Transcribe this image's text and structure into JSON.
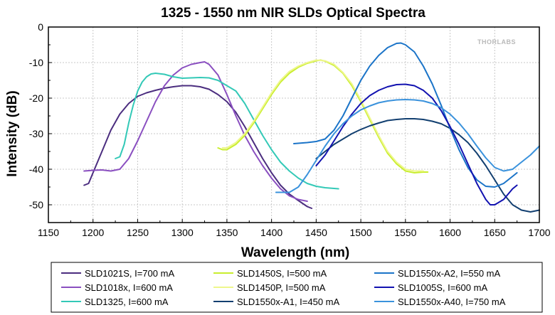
{
  "chart_data": {
    "type": "line",
    "title": "1325 - 1550 nm NIR SLDs Optical Spectra",
    "xlabel": "Wavelength (nm)",
    "ylabel": "Intensity (dB)",
    "xlim": [
      1150,
      1700
    ],
    "ylim": [
      -55,
      0
    ],
    "xticks": [
      1150,
      1200,
      1250,
      1300,
      1350,
      1400,
      1450,
      1500,
      1550,
      1600,
      1650,
      1700
    ],
    "yticks": [
      0,
      -10,
      -20,
      -30,
      -40,
      -50
    ],
    "grid": true,
    "legend_position": "bottom",
    "watermark": "THORLABS",
    "series": [
      {
        "name": "SLD1021S, I=700 mA",
        "color": "#4b2d7f",
        "points": [
          [
            1190,
            -44.5
          ],
          [
            1195,
            -44
          ],
          [
            1200,
            -41
          ],
          [
            1210,
            -35
          ],
          [
            1220,
            -29
          ],
          [
            1230,
            -24.5
          ],
          [
            1240,
            -21.5
          ],
          [
            1250,
            -19.5
          ],
          [
            1260,
            -18.5
          ],
          [
            1270,
            -17.8
          ],
          [
            1280,
            -17.2
          ],
          [
            1290,
            -16.8
          ],
          [
            1300,
            -16.5
          ],
          [
            1310,
            -16.5
          ],
          [
            1320,
            -16.8
          ],
          [
            1330,
            -17.5
          ],
          [
            1340,
            -19
          ],
          [
            1350,
            -21
          ],
          [
            1360,
            -24
          ],
          [
            1370,
            -28
          ],
          [
            1380,
            -32.5
          ],
          [
            1390,
            -37
          ],
          [
            1400,
            -41
          ],
          [
            1410,
            -44.5
          ],
          [
            1420,
            -47
          ],
          [
            1430,
            -48.8
          ],
          [
            1440,
            -50.5
          ],
          [
            1445,
            -51
          ]
        ]
      },
      {
        "name": "SLD1018x, I=600 mA",
        "color": "#8a4fc0",
        "points": [
          [
            1190,
            -40.5
          ],
          [
            1200,
            -40.3
          ],
          [
            1210,
            -40.2
          ],
          [
            1220,
            -40.5
          ],
          [
            1230,
            -40
          ],
          [
            1240,
            -37
          ],
          [
            1250,
            -32
          ],
          [
            1260,
            -26.5
          ],
          [
            1270,
            -21
          ],
          [
            1280,
            -16.5
          ],
          [
            1290,
            -13.5
          ],
          [
            1300,
            -11.5
          ],
          [
            1310,
            -10.5
          ],
          [
            1320,
            -10
          ],
          [
            1325,
            -9.8
          ],
          [
            1330,
            -10.5
          ],
          [
            1340,
            -13.5
          ],
          [
            1350,
            -19
          ],
          [
            1360,
            -25
          ],
          [
            1370,
            -30.5
          ],
          [
            1380,
            -35
          ],
          [
            1390,
            -39
          ],
          [
            1400,
            -42.5
          ],
          [
            1410,
            -45.5
          ],
          [
            1420,
            -47.5
          ],
          [
            1430,
            -48.5
          ],
          [
            1440,
            -49
          ]
        ]
      },
      {
        "name": "SLD1325, I=600 mA",
        "color": "#33c9b7",
        "points": [
          [
            1225,
            -37
          ],
          [
            1230,
            -36.5
          ],
          [
            1235,
            -33
          ],
          [
            1240,
            -27
          ],
          [
            1245,
            -22
          ],
          [
            1250,
            -18
          ],
          [
            1255,
            -15.5
          ],
          [
            1260,
            -14
          ],
          [
            1265,
            -13.2
          ],
          [
            1270,
            -13
          ],
          [
            1280,
            -13.3
          ],
          [
            1290,
            -14
          ],
          [
            1300,
            -14.4
          ],
          [
            1310,
            -14.3
          ],
          [
            1320,
            -14.2
          ],
          [
            1330,
            -14.3
          ],
          [
            1340,
            -15
          ],
          [
            1350,
            -16.5
          ],
          [
            1360,
            -18
          ],
          [
            1370,
            -21.5
          ],
          [
            1380,
            -26
          ],
          [
            1390,
            -30.5
          ],
          [
            1400,
            -34.5
          ],
          [
            1410,
            -38
          ],
          [
            1420,
            -40.5
          ],
          [
            1430,
            -42.5
          ],
          [
            1440,
            -44
          ],
          [
            1450,
            -44.8
          ],
          [
            1460,
            -45.2
          ],
          [
            1470,
            -45.4
          ],
          [
            1475,
            -45.5
          ]
        ]
      },
      {
        "name": "SLD1450S, I=500 mA",
        "color": "#c9ee2e",
        "points": [
          [
            1340,
            -34
          ],
          [
            1345,
            -34.5
          ],
          [
            1350,
            -34.5
          ],
          [
            1360,
            -33
          ],
          [
            1370,
            -30.5
          ],
          [
            1380,
            -27
          ],
          [
            1390,
            -23
          ],
          [
            1400,
            -19
          ],
          [
            1410,
            -15.5
          ],
          [
            1420,
            -13
          ],
          [
            1430,
            -11.3
          ],
          [
            1440,
            -10.2
          ],
          [
            1450,
            -9.5
          ],
          [
            1455,
            -9.3
          ],
          [
            1460,
            -9.6
          ],
          [
            1470,
            -10.8
          ],
          [
            1480,
            -13
          ],
          [
            1490,
            -16.5
          ],
          [
            1500,
            -21
          ],
          [
            1510,
            -26
          ],
          [
            1520,
            -31
          ],
          [
            1530,
            -35.5
          ],
          [
            1540,
            -38.5
          ],
          [
            1550,
            -40.5
          ],
          [
            1560,
            -41
          ],
          [
            1570,
            -40.8
          ],
          [
            1575,
            -40.8
          ]
        ]
      },
      {
        "name": "SLD1450P, I=500 mA",
        "color": "#eef78c",
        "points": [
          [
            1345,
            -34
          ],
          [
            1350,
            -34
          ],
          [
            1360,
            -32.5
          ],
          [
            1370,
            -30
          ],
          [
            1380,
            -26.5
          ],
          [
            1390,
            -22.5
          ],
          [
            1400,
            -18.5
          ],
          [
            1410,
            -15
          ],
          [
            1420,
            -12.5
          ],
          [
            1430,
            -11
          ],
          [
            1440,
            -10
          ],
          [
            1450,
            -9.3
          ],
          [
            1460,
            -9.5
          ],
          [
            1470,
            -10.5
          ],
          [
            1480,
            -12.8
          ],
          [
            1490,
            -16
          ],
          [
            1500,
            -20.5
          ],
          [
            1510,
            -25.5
          ],
          [
            1520,
            -30.5
          ],
          [
            1530,
            -35
          ],
          [
            1540,
            -38
          ],
          [
            1550,
            -40
          ],
          [
            1560,
            -40.5
          ],
          [
            1570,
            -40.5
          ]
        ]
      },
      {
        "name": "SLD1550x-A1, I=450 mA",
        "color": "#123f70",
        "points": [
          [
            1450,
            -37
          ],
          [
            1460,
            -35
          ],
          [
            1470,
            -33
          ],
          [
            1480,
            -31.5
          ],
          [
            1490,
            -30
          ],
          [
            1500,
            -28.8
          ],
          [
            1510,
            -27.8
          ],
          [
            1520,
            -27
          ],
          [
            1530,
            -26.3
          ],
          [
            1540,
            -26
          ],
          [
            1550,
            -25.8
          ],
          [
            1560,
            -25.8
          ],
          [
            1570,
            -26
          ],
          [
            1580,
            -26.5
          ],
          [
            1590,
            -27.2
          ],
          [
            1600,
            -28.5
          ],
          [
            1610,
            -30.3
          ],
          [
            1620,
            -32.5
          ],
          [
            1630,
            -35.5
          ],
          [
            1640,
            -39
          ],
          [
            1650,
            -43
          ],
          [
            1660,
            -47
          ],
          [
            1670,
            -50
          ],
          [
            1680,
            -51.5
          ],
          [
            1690,
            -52
          ],
          [
            1700,
            -51.5
          ]
        ]
      },
      {
        "name": "SLD1550x-A2, I=550 mA",
        "color": "#1b74c8",
        "points": [
          [
            1425,
            -32.8
          ],
          [
            1440,
            -32.5
          ],
          [
            1450,
            -32.2
          ],
          [
            1460,
            -31.5
          ],
          [
            1470,
            -29
          ],
          [
            1480,
            -25
          ],
          [
            1490,
            -20
          ],
          [
            1500,
            -15
          ],
          [
            1510,
            -11
          ],
          [
            1520,
            -8
          ],
          [
            1530,
            -5.8
          ],
          [
            1540,
            -4.6
          ],
          [
            1545,
            -4.5
          ],
          [
            1550,
            -5
          ],
          [
            1560,
            -7
          ],
          [
            1570,
            -11
          ],
          [
            1580,
            -16
          ],
          [
            1590,
            -22
          ],
          [
            1600,
            -28.5
          ],
          [
            1610,
            -34.5
          ],
          [
            1620,
            -39.5
          ],
          [
            1630,
            -43
          ],
          [
            1640,
            -44.8
          ],
          [
            1650,
            -45
          ],
          [
            1660,
            -44
          ],
          [
            1670,
            -42
          ],
          [
            1675,
            -41
          ]
        ]
      },
      {
        "name": "SLD1005S, I=600 mA",
        "color": "#1212b0",
        "points": [
          [
            1450,
            -39
          ],
          [
            1460,
            -36
          ],
          [
            1470,
            -32
          ],
          [
            1480,
            -28
          ],
          [
            1490,
            -24.5
          ],
          [
            1500,
            -21.5
          ],
          [
            1510,
            -19.3
          ],
          [
            1520,
            -17.8
          ],
          [
            1530,
            -16.8
          ],
          [
            1540,
            -16.2
          ],
          [
            1550,
            -16.1
          ],
          [
            1560,
            -16.5
          ],
          [
            1570,
            -17.8
          ],
          [
            1580,
            -20
          ],
          [
            1590,
            -23.5
          ],
          [
            1600,
            -28
          ],
          [
            1610,
            -33
          ],
          [
            1620,
            -38.5
          ],
          [
            1630,
            -44
          ],
          [
            1640,
            -48.5
          ],
          [
            1645,
            -50
          ],
          [
            1650,
            -50
          ],
          [
            1660,
            -48.5
          ],
          [
            1670,
            -45.5
          ],
          [
            1675,
            -44.5
          ]
        ]
      },
      {
        "name": "SLD1550x-A40, I=750 mA",
        "color": "#3a92dc",
        "points": [
          [
            1405,
            -46.5
          ],
          [
            1420,
            -46.5
          ],
          [
            1430,
            -45
          ],
          [
            1440,
            -41.5
          ],
          [
            1450,
            -37.5
          ],
          [
            1460,
            -33.5
          ],
          [
            1470,
            -30
          ],
          [
            1480,
            -27.2
          ],
          [
            1490,
            -25
          ],
          [
            1500,
            -23.3
          ],
          [
            1510,
            -22.2
          ],
          [
            1520,
            -21.3
          ],
          [
            1530,
            -20.8
          ],
          [
            1540,
            -20.5
          ],
          [
            1550,
            -20.4
          ],
          [
            1560,
            -20.5
          ],
          [
            1570,
            -20.8
          ],
          [
            1580,
            -21.5
          ],
          [
            1590,
            -22.7
          ],
          [
            1600,
            -24.5
          ],
          [
            1610,
            -27
          ],
          [
            1620,
            -30
          ],
          [
            1630,
            -33.5
          ],
          [
            1640,
            -36.8
          ],
          [
            1650,
            -39.5
          ],
          [
            1660,
            -40.5
          ],
          [
            1670,
            -40
          ],
          [
            1680,
            -38
          ],
          [
            1690,
            -36
          ],
          [
            1700,
            -33.5
          ]
        ]
      }
    ],
    "legend_order": [
      [
        "SLD1021S, I=700 mA",
        "SLD1450S, I=500 mA",
        "SLD1550x-A2, I=550 mA"
      ],
      [
        "SLD1018x, I=600 mA",
        "SLD1450P, I=500 mA",
        "SLD1005S, I=600 mA"
      ],
      [
        "SLD1325, I=600 mA",
        "SLD1550x-A1, I=450 mA",
        "SLD1550x-A40, I=750 mA"
      ]
    ]
  }
}
